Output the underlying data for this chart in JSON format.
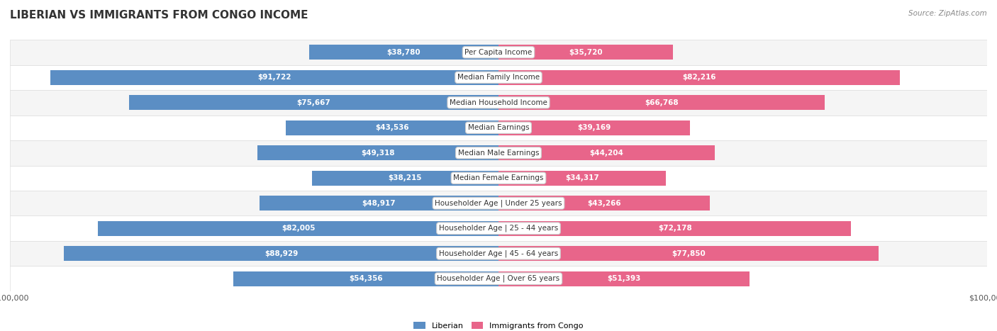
{
  "title": "LIBERIAN VS IMMIGRANTS FROM CONGO INCOME",
  "source": "Source: ZipAtlas.com",
  "categories": [
    "Per Capita Income",
    "Median Family Income",
    "Median Household Income",
    "Median Earnings",
    "Median Male Earnings",
    "Median Female Earnings",
    "Householder Age | Under 25 years",
    "Householder Age | 25 - 44 years",
    "Householder Age | 45 - 64 years",
    "Householder Age | Over 65 years"
  ],
  "liberian_values": [
    38780,
    91722,
    75667,
    43536,
    49318,
    38215,
    48917,
    82005,
    88929,
    54356
  ],
  "congo_values": [
    35720,
    82216,
    66768,
    39169,
    44204,
    34317,
    43266,
    72178,
    77850,
    51393
  ],
  "liberian_color": "#90aed4",
  "liberian_color_dark": "#5b8ec4",
  "congo_color": "#f4a0b5",
  "congo_color_dark": "#e8658a",
  "max_value": 100000,
  "background_color": "#ffffff",
  "row_bg_light": "#f5f5f5",
  "row_bg_white": "#ffffff",
  "label_box_color": "#ffffff",
  "label_box_border": "#cccccc"
}
